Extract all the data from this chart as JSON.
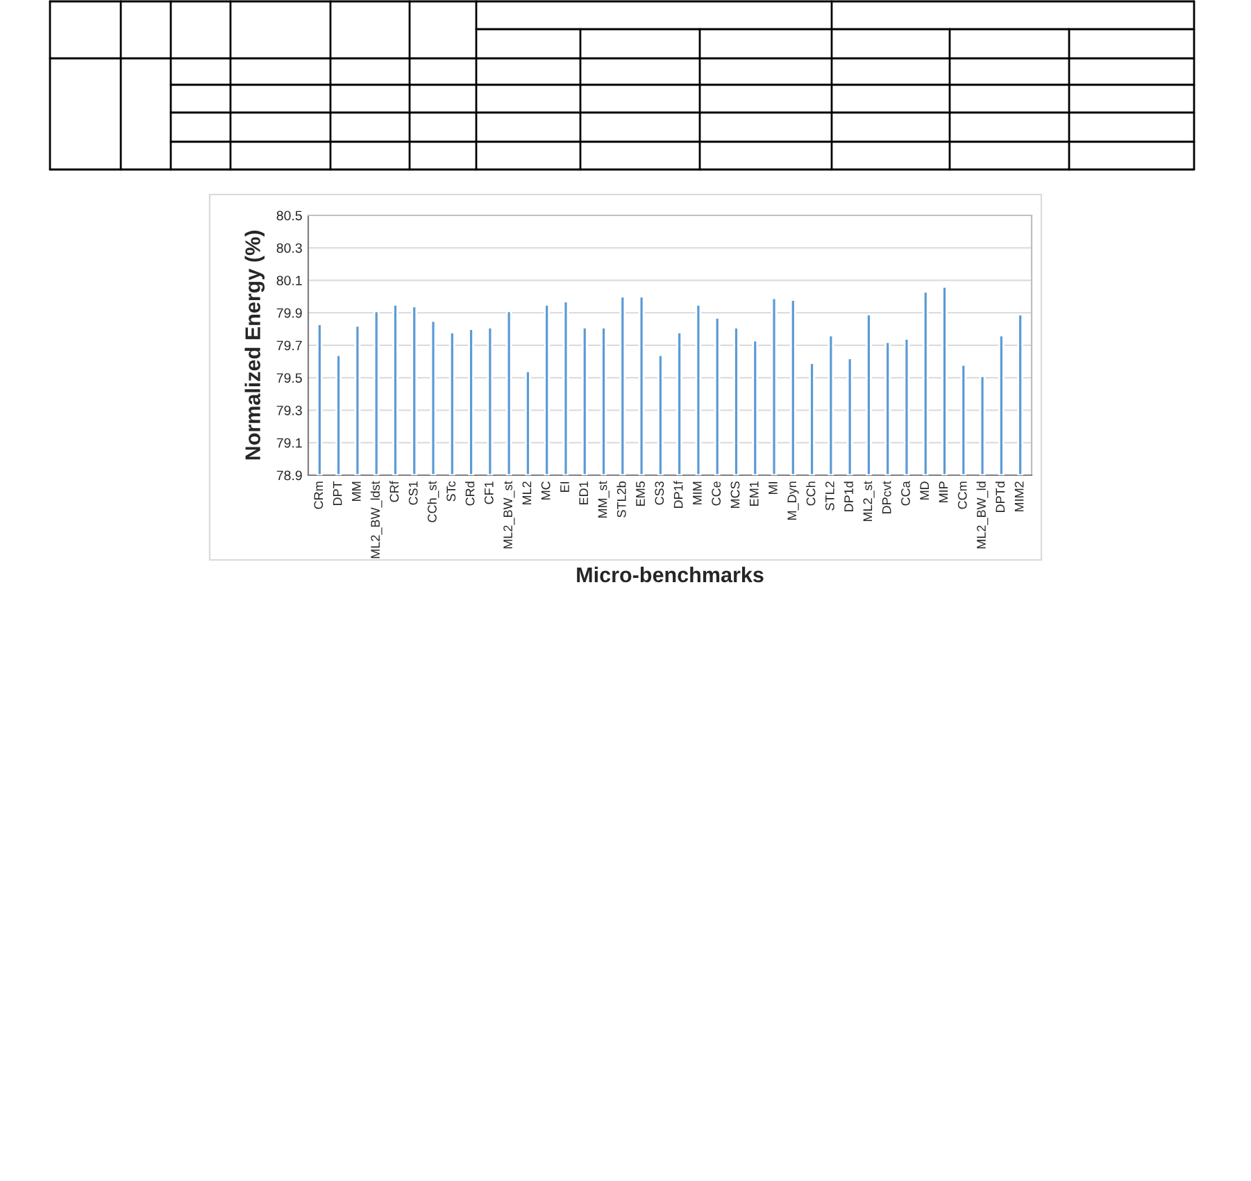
{
  "chart_data": {
    "type": "bar",
    "xlabel": "Micro-benchmarks",
    "ylabel": "Normalized Energy (%)",
    "categories": [
      "CRm",
      "DPT",
      "MM",
      "ML2_BW_ldst",
      "CRf",
      "CS1",
      "CCh_st",
      "STc",
      "CRd",
      "CF1",
      "ML2_BW_st",
      "ML2",
      "MC",
      "EI",
      "ED1",
      "MM_st",
      "STL2b",
      "EM5",
      "CS3",
      "DP1f",
      "MIM",
      "CCe",
      "MCS",
      "EM1",
      "MI",
      "M_Dyn",
      "CCh",
      "STL2",
      "DP1d",
      "ML2_st",
      "DPcvt",
      "CCa",
      "MD",
      "MIP",
      "CCm",
      "ML2_BW_ld",
      "DPTd",
      "MIM2"
    ],
    "values": [
      79.83,
      79.64,
      79.82,
      79.91,
      79.95,
      79.94,
      79.85,
      79.78,
      79.8,
      79.81,
      79.91,
      79.54,
      79.95,
      79.97,
      79.81,
      79.81,
      80.0,
      80.0,
      79.64,
      79.78,
      79.95,
      79.87,
      79.81,
      79.73,
      79.99,
      79.98,
      79.59,
      79.76,
      79.62,
      79.89,
      79.72,
      79.74,
      80.03,
      80.06,
      79.58,
      79.51,
      79.76,
      79.89
    ],
    "color": "#5b9bd5",
    "ylim": [
      78.9,
      80.5
    ],
    "yticks": [
      78.9,
      79.1,
      79.3,
      79.5,
      79.7,
      79.9,
      80.1,
      80.3,
      80.5
    ],
    "grid": "y",
    "legend": false
  }
}
